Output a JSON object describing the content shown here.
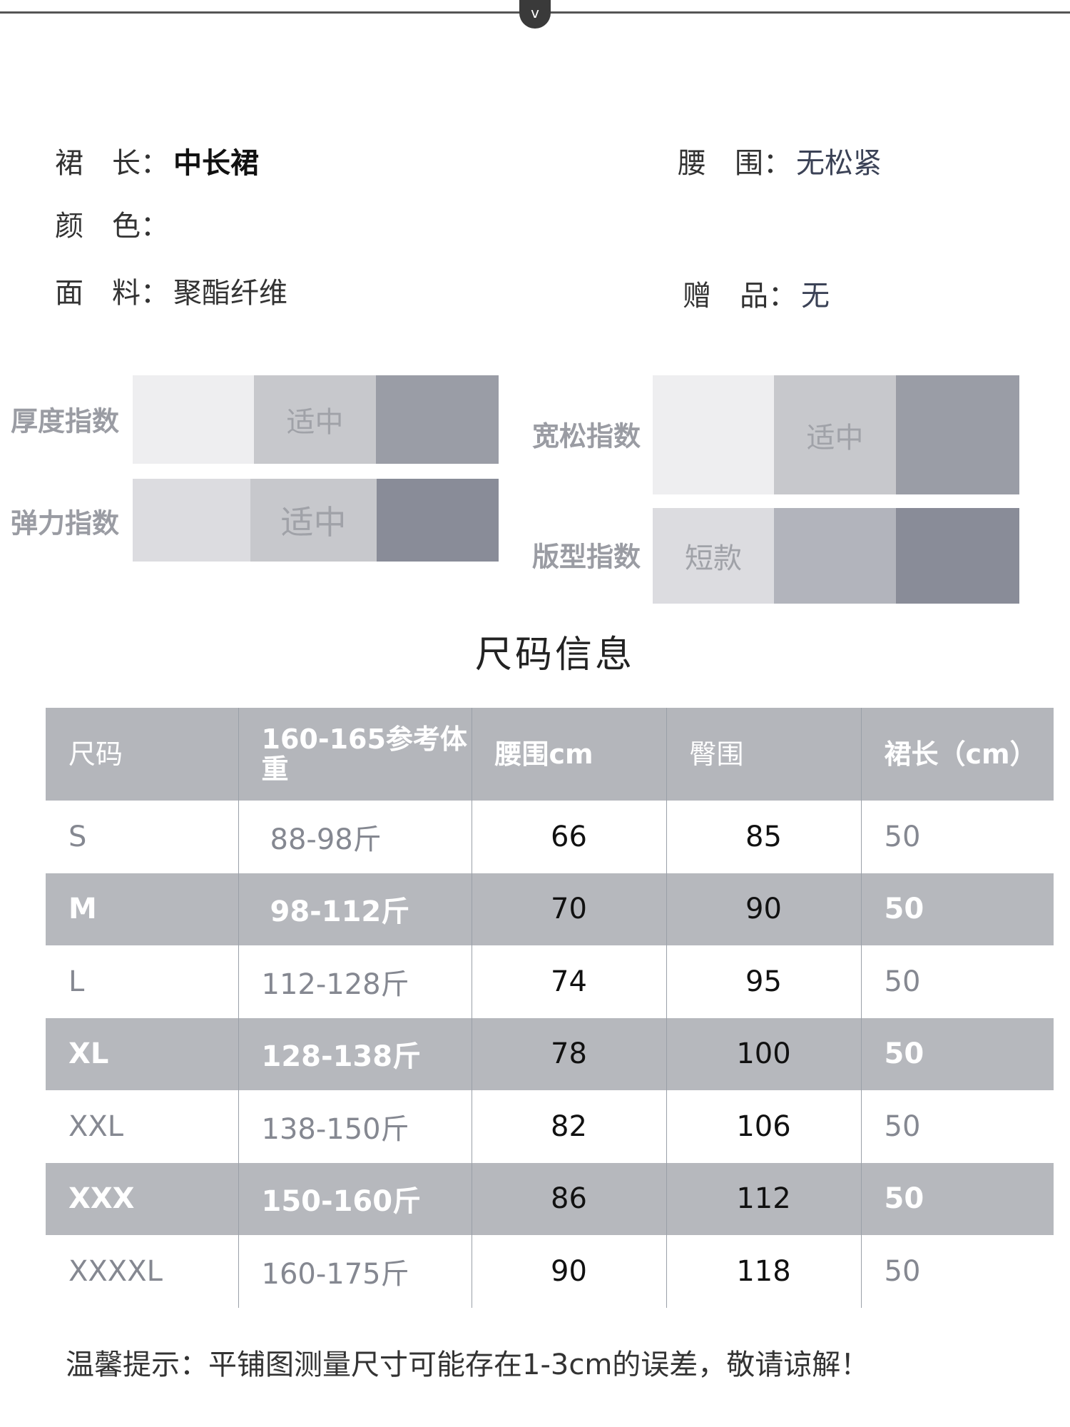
{
  "top_toggle": {
    "label": "v"
  },
  "attributes": [
    {
      "label": "裙　长：",
      "value": "中长裙"
    },
    {
      "label": "腰　围：",
      "value": "无松紧"
    },
    {
      "label": "颜　色：",
      "value": ""
    },
    {
      "label": "面　料：",
      "value": "聚酯纤维"
    },
    {
      "label": "赠　品：",
      "value": "无"
    }
  ],
  "indices": [
    {
      "label": "厚度指数",
      "segments": [
        "",
        "适中",
        ""
      ],
      "selected": 1
    },
    {
      "label": "弹力指数",
      "segments": [
        "",
        "适中",
        ""
      ],
      "selected": 1
    },
    {
      "label": "宽松指数",
      "segments": [
        "",
        "适中",
        ""
      ],
      "selected": 1
    },
    {
      "label": "版型指数",
      "segments": [
        "短款",
        "",
        ""
      ],
      "selected": 0
    }
  ],
  "size_title": "尺码信息",
  "table": {
    "headers": [
      "尺码",
      "160-165参考体重",
      "腰围cm",
      "臀围",
      "裙长（cm）"
    ],
    "rows": [
      [
        "S",
        "88-98斤",
        "66",
        "85",
        "50"
      ],
      [
        "M",
        "98-112斤",
        "70",
        "90",
        "50"
      ],
      [
        "L",
        "112-128斤",
        "74",
        "95",
        "50"
      ],
      [
        "XL",
        "128-138斤",
        "78",
        "100",
        "50"
      ],
      [
        "XXL",
        "138-150斤",
        "82",
        "106",
        "50"
      ],
      [
        "XXX",
        "150-160斤",
        "86",
        "112",
        "50"
      ],
      [
        "XXXXL",
        "160-175斤",
        "90",
        "118",
        "50"
      ]
    ]
  },
  "note": "温馨提示：平铺图测量尺寸可能存在1-3cm的误差，敬请谅解！",
  "colors": {
    "header_bg": "#b4b6bb",
    "light": "#eeeef0",
    "mid": "#c7c8cc",
    "dark": "#9a9da6",
    "darkest": "#8a8d98",
    "accent_text": "#3b4256"
  }
}
